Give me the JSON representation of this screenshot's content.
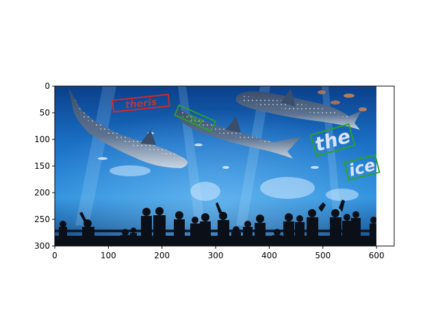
{
  "axes": {
    "x_ticks": [
      0,
      100,
      200,
      300,
      400,
      500,
      600
    ],
    "y_ticks": [
      0,
      50,
      100,
      150,
      200,
      250,
      300
    ],
    "xlim": [
      0,
      633
    ],
    "ylim": [
      300,
      0
    ]
  },
  "image": {
    "subject": "aquarium-with-whale-sharks-and-crowd-silhouettes",
    "width_units": 600,
    "height_units": 300
  },
  "text_regions": [
    {
      "text": "theris",
      "box_color": "#d62728"
    },
    {
      "text": "run",
      "box_color": "#2ca02c"
    },
    {
      "text": "the",
      "box_color": "#2ca02c"
    },
    {
      "text": "ice",
      "box_color": "#2ca02c"
    }
  ]
}
